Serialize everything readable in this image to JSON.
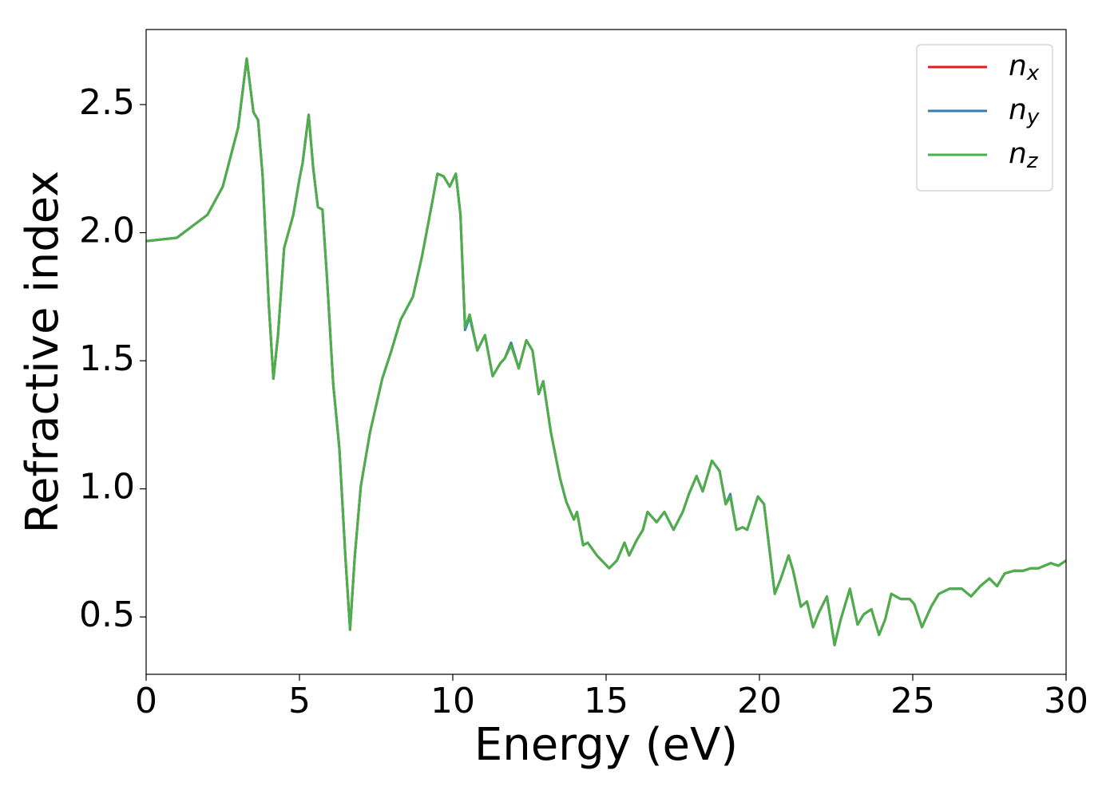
{
  "chart_data": {
    "type": "line",
    "xlabel": "Energy (eV)",
    "ylabel": "Refractive index",
    "xlim": [
      0,
      30
    ],
    "ylim": [
      0.276,
      2.793
    ],
    "xticks": [
      0,
      5,
      10,
      15,
      20,
      25,
      30
    ],
    "yticks": [
      0.5,
      {
        "value": 1,
        "label": "1.0"
      },
      1.5,
      {
        "value": 2,
        "label": "2.0"
      },
      2.5
    ],
    "legend": "upper right",
    "grid": false,
    "x": [
      0,
      1,
      2,
      2.5,
      3.0,
      3.28,
      3.5,
      3.65,
      3.8,
      4.0,
      4.15,
      4.3,
      4.5,
      4.8,
      5.0,
      5.1,
      5.3,
      5.45,
      5.6,
      5.75,
      5.9,
      6.1,
      6.3,
      6.5,
      6.65,
      6.8,
      7.0,
      7.3,
      7.7,
      8.0,
      8.3,
      8.7,
      9.0,
      9.3,
      9.5,
      9.7,
      9.9,
      10.1,
      10.25,
      10.4,
      10.55,
      10.8,
      11.05,
      11.3,
      11.55,
      11.7,
      11.9,
      12.15,
      12.4,
      12.6,
      12.8,
      12.95,
      13.2,
      13.5,
      13.7,
      13.95,
      14.05,
      14.25,
      14.4,
      14.7,
      15.1,
      15.35,
      15.6,
      15.75,
      16.0,
      16.2,
      16.35,
      16.65,
      16.9,
      17.2,
      17.5,
      17.7,
      17.95,
      18.15,
      18.45,
      18.7,
      18.9,
      19.05,
      19.25,
      19.45,
      19.6,
      19.95,
      20.15,
      20.5,
      20.7,
      20.95,
      21.1,
      21.35,
      21.55,
      21.75,
      21.95,
      22.2,
      22.45,
      22.65,
      22.95,
      23.2,
      23.4,
      23.65,
      23.9,
      24.1,
      24.3,
      24.6,
      24.9,
      25.05,
      25.3,
      25.6,
      25.85,
      26.2,
      26.6,
      26.9,
      27.2,
      27.5,
      27.75,
      28.0,
      28.3,
      28.6,
      28.85,
      29.1,
      29.5,
      29.75,
      30
    ],
    "series": [
      {
        "name": "nx",
        "color": "#e41a1c",
        "values": [
          1.967,
          1.98,
          2.07,
          2.18,
          2.41,
          2.68,
          2.47,
          2.44,
          2.22,
          1.72,
          1.43,
          1.6,
          1.94,
          2.07,
          2.21,
          2.27,
          2.46,
          2.25,
          2.1,
          2.09,
          1.82,
          1.41,
          1.16,
          0.73,
          0.45,
          0.73,
          1.01,
          1.22,
          1.43,
          1.54,
          1.66,
          1.75,
          1.91,
          2.1,
          2.23,
          2.22,
          2.18,
          2.23,
          2.07,
          1.63,
          1.68,
          1.54,
          1.6,
          1.44,
          1.49,
          1.51,
          1.57,
          1.47,
          1.58,
          1.54,
          1.37,
          1.42,
          1.22,
          1.04,
          0.95,
          0.88,
          0.91,
          0.78,
          0.79,
          0.74,
          0.69,
          0.72,
          0.79,
          0.74,
          0.8,
          0.84,
          0.91,
          0.87,
          0.91,
          0.84,
          0.91,
          0.98,
          1.05,
          0.99,
          1.11,
          1.07,
          0.94,
          0.97,
          0.84,
          0.85,
          0.84,
          0.97,
          0.94,
          0.59,
          0.65,
          0.74,
          0.68,
          0.54,
          0.56,
          0.46,
          0.52,
          0.58,
          0.39,
          0.49,
          0.61,
          0.47,
          0.51,
          0.53,
          0.43,
          0.49,
          0.59,
          0.57,
          0.57,
          0.55,
          0.46,
          0.54,
          0.59,
          0.61,
          0.61,
          0.58,
          0.62,
          0.65,
          0.62,
          0.67,
          0.68,
          0.68,
          0.69,
          0.69,
          0.71,
          0.7,
          0.72
        ]
      },
      {
        "name": "ny",
        "color": "#377eb8",
        "values": [
          1.967,
          1.98,
          2.07,
          2.18,
          2.41,
          2.68,
          2.47,
          2.44,
          2.22,
          1.72,
          1.43,
          1.6,
          1.94,
          2.07,
          2.21,
          2.27,
          2.46,
          2.25,
          2.1,
          2.09,
          1.82,
          1.41,
          1.16,
          0.73,
          0.45,
          0.73,
          1.01,
          1.22,
          1.43,
          1.54,
          1.66,
          1.75,
          1.91,
          2.1,
          2.23,
          2.22,
          2.18,
          2.23,
          2.07,
          1.62,
          1.67,
          1.54,
          1.6,
          1.44,
          1.49,
          1.51,
          1.57,
          1.47,
          1.58,
          1.54,
          1.37,
          1.42,
          1.22,
          1.04,
          0.95,
          0.88,
          0.91,
          0.78,
          0.79,
          0.74,
          0.69,
          0.72,
          0.79,
          0.74,
          0.8,
          0.84,
          0.91,
          0.87,
          0.91,
          0.84,
          0.91,
          0.98,
          1.05,
          0.99,
          1.11,
          1.07,
          0.94,
          0.98,
          0.84,
          0.85,
          0.84,
          0.97,
          0.94,
          0.59,
          0.65,
          0.74,
          0.68,
          0.54,
          0.56,
          0.46,
          0.52,
          0.58,
          0.39,
          0.49,
          0.61,
          0.47,
          0.51,
          0.53,
          0.43,
          0.49,
          0.59,
          0.57,
          0.57,
          0.55,
          0.46,
          0.54,
          0.59,
          0.61,
          0.61,
          0.58,
          0.62,
          0.65,
          0.62,
          0.67,
          0.68,
          0.68,
          0.69,
          0.69,
          0.71,
          0.7,
          0.72
        ]
      },
      {
        "name": "nz",
        "color": "#4daf4a",
        "values": [
          1.967,
          1.98,
          2.07,
          2.18,
          2.41,
          2.68,
          2.47,
          2.44,
          2.22,
          1.72,
          1.43,
          1.6,
          1.94,
          2.07,
          2.21,
          2.27,
          2.46,
          2.25,
          2.1,
          2.09,
          1.82,
          1.41,
          1.16,
          0.73,
          0.45,
          0.73,
          1.01,
          1.22,
          1.43,
          1.54,
          1.66,
          1.75,
          1.91,
          2.1,
          2.23,
          2.22,
          2.18,
          2.23,
          2.07,
          1.63,
          1.68,
          1.54,
          1.6,
          1.44,
          1.49,
          1.51,
          1.56,
          1.47,
          1.58,
          1.54,
          1.37,
          1.42,
          1.22,
          1.04,
          0.95,
          0.88,
          0.91,
          0.78,
          0.79,
          0.74,
          0.69,
          0.72,
          0.79,
          0.74,
          0.8,
          0.84,
          0.91,
          0.87,
          0.91,
          0.84,
          0.91,
          0.98,
          1.05,
          0.99,
          1.11,
          1.07,
          0.94,
          0.97,
          0.84,
          0.85,
          0.84,
          0.97,
          0.94,
          0.59,
          0.65,
          0.74,
          0.68,
          0.54,
          0.56,
          0.46,
          0.52,
          0.58,
          0.39,
          0.49,
          0.61,
          0.47,
          0.51,
          0.53,
          0.43,
          0.49,
          0.59,
          0.57,
          0.57,
          0.55,
          0.46,
          0.54,
          0.59,
          0.61,
          0.61,
          0.58,
          0.62,
          0.65,
          0.62,
          0.67,
          0.68,
          0.68,
          0.69,
          0.69,
          0.71,
          0.7,
          0.72
        ]
      }
    ]
  }
}
